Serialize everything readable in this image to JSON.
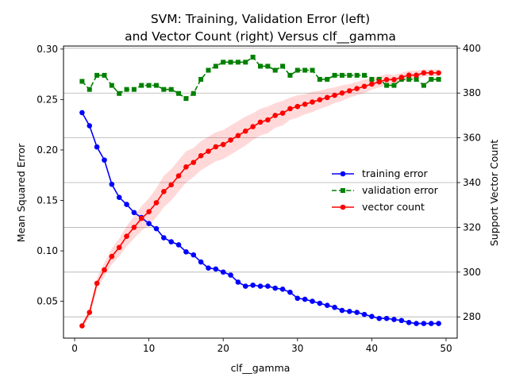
{
  "chart_data": {
    "type": "line",
    "title": [
      "SVM: Training, Validation Error (left)",
      "and Vector Count (right) Versus clf__gamma"
    ],
    "xlabel": "clf__gamma",
    "ylabel_left": "Mean Squared Error",
    "ylabel_right": "Support Vector Count",
    "xlim": [
      -1.5,
      51.5
    ],
    "ylim_left": [
      0.0135,
      0.303
    ],
    "ylim_right": [
      270.5,
      401
    ],
    "xticks": [
      0,
      10,
      20,
      30,
      40,
      50
    ],
    "yticks_left": [
      0.05,
      0.1,
      0.15,
      0.2,
      0.25,
      0.3
    ],
    "yticks_left_labels": [
      "0.05",
      "0.10",
      "0.15",
      "0.20",
      "0.25",
      "0.30"
    ],
    "yticks_right": [
      280,
      300,
      320,
      340,
      360,
      380,
      400
    ],
    "grid": "horizontal lines at right-axis ticks",
    "legend_position": "center-right",
    "x": [
      1,
      2,
      3,
      4,
      5,
      6,
      7,
      8,
      9,
      10,
      11,
      12,
      13,
      14,
      15,
      16,
      17,
      18,
      19,
      20,
      21,
      22,
      23,
      24,
      25,
      26,
      27,
      28,
      29,
      30,
      31,
      32,
      33,
      34,
      35,
      36,
      37,
      38,
      39,
      40,
      41,
      42,
      43,
      44,
      45,
      46,
      47,
      48,
      49
    ],
    "series": [
      {
        "name": "training error",
        "axis": "left",
        "color": "#0000ff",
        "marker": "circle",
        "linestyle": "solid",
        "values": [
          0.237,
          0.224,
          0.203,
          0.19,
          0.166,
          0.153,
          0.146,
          0.138,
          0.133,
          0.127,
          0.122,
          0.113,
          0.109,
          0.106,
          0.099,
          0.096,
          0.089,
          0.083,
          0.082,
          0.079,
          0.076,
          0.069,
          0.065,
          0.066,
          0.065,
          0.065,
          0.063,
          0.062,
          0.059,
          0.053,
          0.052,
          0.05,
          0.048,
          0.046,
          0.044,
          0.041,
          0.04,
          0.039,
          0.037,
          0.035,
          0.033,
          0.033,
          0.032,
          0.031,
          0.029,
          0.028,
          0.028,
          0.028,
          0.028
        ]
      },
      {
        "name": "validation error",
        "axis": "left",
        "color": "#008000",
        "marker": "square",
        "linestyle": "dashed",
        "values": [
          0.268,
          0.26,
          0.274,
          0.274,
          0.264,
          0.256,
          0.26,
          0.26,
          0.264,
          0.264,
          0.264,
          0.26,
          0.26,
          0.256,
          0.251,
          0.256,
          0.27,
          0.279,
          0.283,
          0.287,
          0.287,
          0.287,
          0.287,
          0.292,
          0.283,
          0.283,
          0.279,
          0.283,
          0.274,
          0.279,
          0.279,
          0.279,
          0.27,
          0.27,
          0.274,
          0.274,
          0.274,
          0.274,
          0.274,
          0.27,
          0.27,
          0.264,
          0.264,
          0.27,
          0.27,
          0.27,
          0.264,
          0.27,
          0.27
        ]
      },
      {
        "name": "vector count",
        "axis": "right",
        "color": "#ff0000",
        "marker": "circle",
        "linestyle": "solid",
        "values": [
          276,
          282,
          295,
          301,
          307,
          311,
          316,
          320,
          324,
          327,
          331,
          336,
          339,
          343,
          347,
          349,
          352,
          354,
          356,
          357,
          359,
          361,
          363,
          365,
          367,
          368,
          370,
          371,
          373,
          374,
          375,
          376,
          377,
          378,
          379,
          380,
          381,
          382,
          383,
          384,
          385,
          386,
          386,
          387,
          388,
          388,
          389,
          389,
          389
        ],
        "band": [
          1,
          2,
          2.5,
          3,
          3.5,
          4,
          4.5,
          5,
          5.5,
          6,
          6.5,
          7,
          7,
          7,
          7,
          6.5,
          6.5,
          6.5,
          6.5,
          6.5,
          6.5,
          6.5,
          6.5,
          6,
          6,
          6,
          5.5,
          5.5,
          5,
          5,
          4.5,
          4.5,
          4,
          4,
          3.5,
          3.5,
          3,
          3,
          3,
          2.5,
          2.5,
          2.5,
          2,
          2,
          2,
          2,
          1.5,
          1.5,
          1.5
        ]
      }
    ]
  }
}
